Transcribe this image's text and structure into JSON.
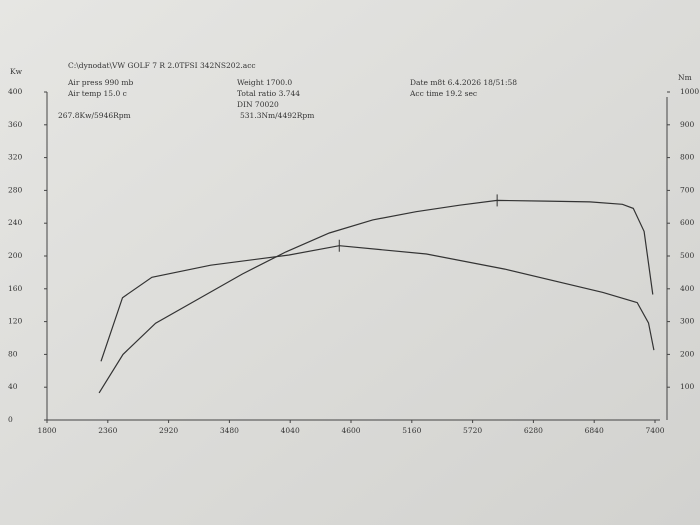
{
  "chart_data": {
    "type": "line",
    "file_label": "C:\\dynodat\\VW GOLF 7 R 2.0TFSI 342NS202.acc",
    "annotations": [
      "Air press  990 mb",
      "Air temp  15.0 c",
      "Weight  1700.0",
      "Total ratio 3.744",
      "DIN 70020",
      "Date m8t 6.4.2026 18/51:58",
      "Acc time  19.2 sec",
      "267.8Kw/5946Rpm",
      "531.3Nm/4492Rpm"
    ],
    "y_label": "Kw",
    "y2_label": "Nm",
    "xlim": [
      1800,
      7400
    ],
    "xticks": [
      1800,
      2360,
      2920,
      3480,
      4040,
      4600,
      5160,
      5720,
      6280,
      6840,
      7400
    ],
    "ylim": [
      0,
      400
    ],
    "yticks": [
      0,
      40,
      80,
      120,
      160,
      200,
      240,
      280,
      320,
      360,
      400
    ],
    "y2lim": [
      0,
      1000
    ],
    "y2ticks": [
      100,
      200,
      300,
      400,
      500,
      600,
      700,
      800,
      900,
      1000
    ],
    "series": [
      {
        "color": "#333333",
        "x": [
          2280,
          2500,
          2800,
          3200,
          3600,
          4000,
          4400,
          4800,
          5200,
          5600,
          5946,
          6400,
          6800,
          7100,
          7200,
          7300,
          7380
        ],
        "values": [
          33,
          80,
          118,
          148,
          178,
          205,
          228,
          244,
          254,
          262,
          267.8,
          267,
          266,
          263,
          258,
          230,
          153
        ]
      },
      {
        "color": "#333333",
        "axis": "y2",
        "x": [
          2297,
          2495,
          2766,
          3308,
          4030,
          4492,
          5295,
          6017,
          6920,
          7236,
          7340,
          7390
        ],
        "values": [
          179,
          373,
          435,
          472,
          503,
          531.3,
          506,
          460,
          389,
          358,
          296,
          213
        ]
      }
    ]
  }
}
